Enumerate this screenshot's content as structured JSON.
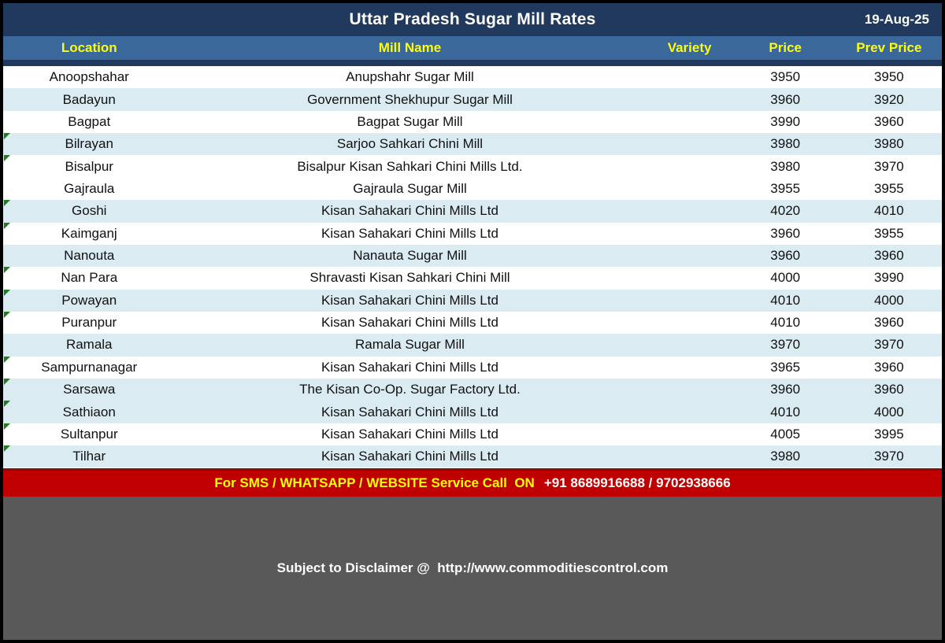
{
  "header": {
    "title": "Uttar Pradesh Sugar Mill Rates",
    "date": "19-Aug-25"
  },
  "table": {
    "columns": [
      "Location",
      "Mill Name",
      "Variety",
      "Price",
      "Prev Price"
    ],
    "rows": [
      {
        "location": "Anoopshahar",
        "mill_name": "Anupshahr Sugar Mill",
        "variety": "",
        "price": "3950",
        "prev_price": "3950",
        "shaded": false,
        "marker": false
      },
      {
        "location": "Badayun",
        "mill_name": "Government Shekhupur Sugar Mill",
        "variety": "",
        "price": "3960",
        "prev_price": "3920",
        "shaded": true,
        "marker": false
      },
      {
        "location": "Bagpat",
        "mill_name": "Bagpat Sugar Mill",
        "variety": "",
        "price": "3990",
        "prev_price": "3960",
        "shaded": false,
        "marker": false
      },
      {
        "location": "Bilrayan",
        "mill_name": "Sarjoo Sahkari Chini Mill",
        "variety": "",
        "price": "3980",
        "prev_price": "3980",
        "shaded": true,
        "marker": true
      },
      {
        "location": "Bisalpur",
        "mill_name": "Bisalpur Kisan Sahkari Chini Mills Ltd.",
        "variety": "",
        "price": "3980",
        "prev_price": "3970",
        "shaded": false,
        "marker": true
      },
      {
        "location": "Gajraula",
        "mill_name": "Gajraula Sugar Mill",
        "variety": "",
        "price": "3955",
        "prev_price": "3955",
        "shaded": false,
        "marker": false
      },
      {
        "location": "Goshi",
        "mill_name": "Kisan Sahakari Chini Mills Ltd",
        "variety": "",
        "price": "4020",
        "prev_price": "4010",
        "shaded": true,
        "marker": true
      },
      {
        "location": "Kaimganj",
        "mill_name": "Kisan Sahakari Chini Mills Ltd",
        "variety": "",
        "price": "3960",
        "prev_price": "3955",
        "shaded": false,
        "marker": true
      },
      {
        "location": "Nanouta",
        "mill_name": "Nanauta Sugar Mill",
        "variety": "",
        "price": "3960",
        "prev_price": "3960",
        "shaded": true,
        "marker": false
      },
      {
        "location": "Nan Para",
        "mill_name": "Shravasti Kisan Sahkari Chini Mill",
        "variety": "",
        "price": "4000",
        "prev_price": "3990",
        "shaded": false,
        "marker": true
      },
      {
        "location": "Powayan",
        "mill_name": "Kisan Sahakari Chini Mills Ltd",
        "variety": "",
        "price": "4010",
        "prev_price": "4000",
        "shaded": true,
        "marker": true
      },
      {
        "location": "Puranpur",
        "mill_name": "Kisan Sahakari Chini Mills Ltd",
        "variety": "",
        "price": "4010",
        "prev_price": "3960",
        "shaded": false,
        "marker": true
      },
      {
        "location": "Ramala",
        "mill_name": "Ramala Sugar Mill",
        "variety": "",
        "price": "3970",
        "prev_price": "3970",
        "shaded": true,
        "marker": false
      },
      {
        "location": "Sampurnanagar",
        "mill_name": "Kisan Sahakari Chini Mills Ltd",
        "variety": "",
        "price": "3965",
        "prev_price": "3960",
        "shaded": false,
        "marker": true
      },
      {
        "location": "Sarsawa",
        "mill_name": "The Kisan Co-Op. Sugar Factory Ltd.",
        "variety": "",
        "price": "3960",
        "prev_price": "3960",
        "shaded": true,
        "marker": true
      },
      {
        "location": "Sathiaon",
        "mill_name": "Kisan Sahakari Chini Mills Ltd",
        "variety": "",
        "price": "4010",
        "prev_price": "4000",
        "shaded": true,
        "marker": true
      },
      {
        "location": "Sultanpur",
        "mill_name": "Kisan Sahakari Chini Mills Ltd",
        "variety": "",
        "price": "4005",
        "prev_price": "3995",
        "shaded": false,
        "marker": true
      },
      {
        "location": "Tilhar",
        "mill_name": "Kisan Sahakari Chini Mills Ltd",
        "variety": "",
        "price": "3980",
        "prev_price": "3970",
        "shaded": true,
        "marker": true
      }
    ]
  },
  "footer": {
    "sms_label": "For SMS / WHATSAPP / WEBSITE Service Call  ON",
    "sms_numbers": "+91 8689916688 / 9702938666",
    "disclaimer": "Subject to Disclaimer @  http://www.commoditiescontrol.com"
  },
  "colors": {
    "title_bar": "#20395C",
    "header_row": "#3A689B",
    "header_text": "#FFFF00",
    "row_stripe": "#DAEBF2",
    "sms_bar": "#C00000",
    "sms_bar_edge": "#7E1010",
    "sms_text_accent": "#FFFF00",
    "disclaimer_bar": "#595959",
    "marker_green": "#1E7E1E",
    "border": "#000000"
  }
}
